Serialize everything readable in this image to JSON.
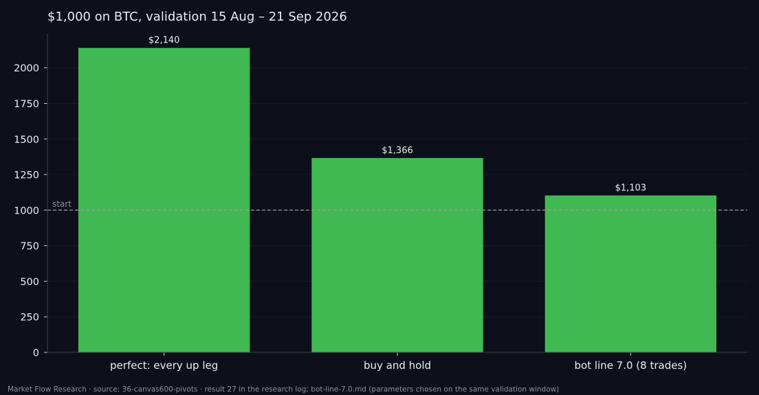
{
  "chart_data": {
    "type": "bar",
    "title": "$1,000 on BTC, validation 15 Aug – 21 Sep 2026",
    "categories": [
      "perfect: every up leg",
      "buy and hold",
      "bot line 7.0 (8 trades)"
    ],
    "values": [
      2140,
      1366,
      1103
    ],
    "value_labels": [
      "$2,140",
      "$1,366",
      "$1,103"
    ],
    "xlabel": "",
    "ylabel": "",
    "ylim": [
      0,
      2240
    ],
    "yticks": [
      0,
      250,
      500,
      750,
      1000,
      1250,
      1500,
      1750,
      2000
    ],
    "grid": true,
    "reference_line": {
      "value": 1000,
      "label": "start"
    },
    "colors": {
      "bar": "#41b953",
      "background": "#0d1018",
      "text": "#e9edf2",
      "grid": "#171b24",
      "axis": "#3a3f4a",
      "reference": "#9aa0a8"
    }
  },
  "footer": "Market Flow Research · source: 36-canvas600-pivots · result 27 in the research log; bot-line-7.0.md (parameters chosen on the same validation window)"
}
